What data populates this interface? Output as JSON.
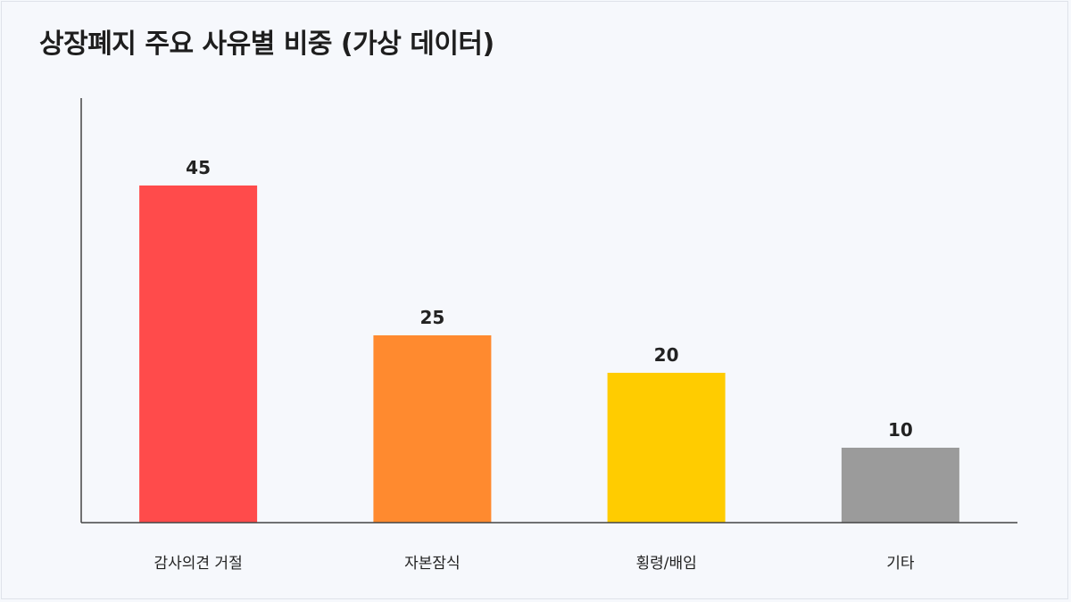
{
  "title": "상장폐지 주요 사유별 비중 (가상 데이터)",
  "chart_data": {
    "type": "bar",
    "title": "상장폐지 주요 사유별 비중 (가상 데이터)",
    "categories": [
      "감사의견 거절",
      "자본잠식",
      "횡령/배임",
      "기타"
    ],
    "values": [
      45,
      25,
      20,
      10
    ],
    "colors": [
      "#ff4b4b",
      "#ff8a2f",
      "#ffcc00",
      "#9b9b9b"
    ],
    "xlabel": "",
    "ylabel": "",
    "ylim": [
      0,
      50
    ],
    "grid": false,
    "legend": "none"
  }
}
